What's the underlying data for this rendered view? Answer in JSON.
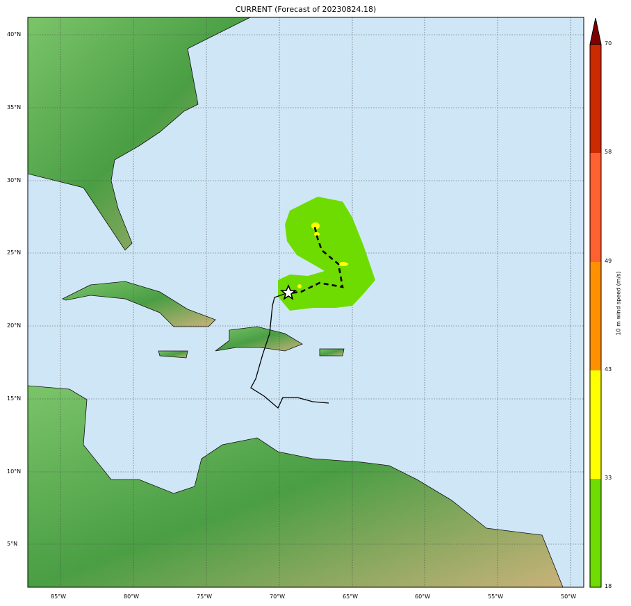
{
  "title": "CURRENT (Forecast of 20230824.18)",
  "map": {
    "extent": {
      "lon_min": -87.2,
      "lon_max": -49.1,
      "lat_min": 2.0,
      "lat_max": 41.2
    },
    "lon_ticks": [
      "85°W",
      "80°W",
      "75°W",
      "70°W",
      "65°W",
      "60°W",
      "55°W",
      "50°W"
    ],
    "lat_ticks": [
      "40°N",
      "35°N",
      "30°N",
      "25°N",
      "20°N",
      "15°N",
      "10°N",
      "5°N"
    ],
    "ocean_color": "#cfe6f6",
    "storm_marker": "star-icon",
    "forecast_track_style": "dashed",
    "past_track_style": "solid"
  },
  "colorbar": {
    "label": "10 m wind speed (m/s)",
    "ticks": [
      "18",
      "33",
      "43",
      "49",
      "58",
      "70"
    ],
    "colors": [
      "#6edc00",
      "#ffff00",
      "#ff9000",
      "#ff6030",
      "#cc2a00"
    ],
    "extend_color": "#800000"
  }
}
